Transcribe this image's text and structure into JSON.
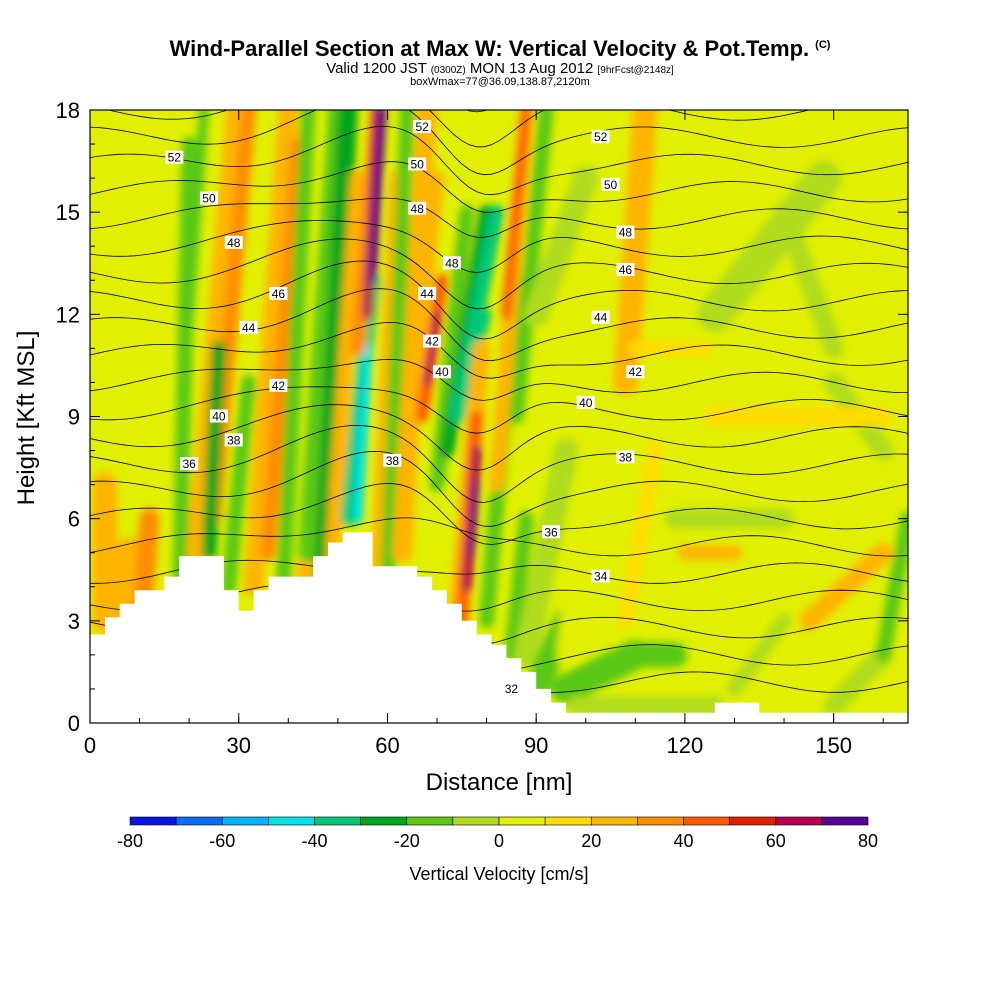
{
  "header": {
    "title": "Wind-Parallel Section at Max W: Vertical Velocity & Pot.Temp.",
    "title_unit": "(C)",
    "valid_prefix": "Valid 1200 JST",
    "valid_z": "(0300Z)",
    "valid_date": "MON 13 Aug 2012",
    "forecast": "[9hrFcst@2148z]",
    "boxwmax": "boxWmax=77@36.09,138.87,2120m"
  },
  "chart_data": {
    "type": "heatmap",
    "xlabel": "Distance [nm]",
    "ylabel": "Height [Kft MSL]",
    "xlim": [
      0,
      165
    ],
    "ylim": [
      0,
      18
    ],
    "xticks": [
      0,
      30,
      60,
      90,
      120,
      150
    ],
    "yticks": [
      0,
      3,
      6,
      9,
      12,
      15,
      18
    ],
    "colorbar": {
      "label": "Vertical Velocity [cm/s]",
      "ticks": [
        -80,
        -60,
        -40,
        -20,
        0,
        20,
        40,
        60,
        80
      ],
      "levels": [
        -80,
        -70,
        -60,
        -50,
        -40,
        -30,
        -20,
        -10,
        0,
        10,
        20,
        30,
        40,
        50,
        60,
        70,
        80
      ],
      "colors": [
        "#0a14e6",
        "#0a6ef5",
        "#00b4ff",
        "#00e1e6",
        "#00c878",
        "#00a51e",
        "#5ac814",
        "#afdc1e",
        "#e1f000",
        "#ffdc00",
        "#ffb400",
        "#ff8c00",
        "#ff5a00",
        "#e61e00",
        "#b40050",
        "#5a0096"
      ]
    },
    "terrain": [
      [
        0,
        2.6
      ],
      [
        3,
        2.6
      ],
      [
        3,
        3.1
      ],
      [
        6,
        3.1
      ],
      [
        6,
        3.5
      ],
      [
        9,
        3.5
      ],
      [
        9,
        3.9
      ],
      [
        15,
        3.9
      ],
      [
        15,
        4.3
      ],
      [
        18,
        4.3
      ],
      [
        18,
        4.9
      ],
      [
        27,
        4.9
      ],
      [
        27,
        3.9
      ],
      [
        30,
        3.9
      ],
      [
        30,
        3.3
      ],
      [
        33,
        3.3
      ],
      [
        33,
        3.9
      ],
      [
        36,
        3.9
      ],
      [
        36,
        4.3
      ],
      [
        45,
        4.3
      ],
      [
        45,
        4.9
      ],
      [
        48,
        4.9
      ],
      [
        48,
        5.3
      ],
      [
        51,
        5.3
      ],
      [
        51,
        5.6
      ],
      [
        57,
        5.6
      ],
      [
        57,
        4.6
      ],
      [
        66,
        4.6
      ],
      [
        66,
        4.3
      ],
      [
        69,
        4.3
      ],
      [
        69,
        3.9
      ],
      [
        72,
        3.9
      ],
      [
        72,
        3.5
      ],
      [
        75,
        3.5
      ],
      [
        75,
        3.0
      ],
      [
        78,
        3.0
      ],
      [
        78,
        2.6
      ],
      [
        81,
        2.6
      ],
      [
        81,
        2.3
      ],
      [
        84,
        2.3
      ],
      [
        84,
        1.9
      ],
      [
        87,
        1.9
      ],
      [
        87,
        1.5
      ],
      [
        90,
        1.5
      ],
      [
        90,
        1.0
      ],
      [
        93,
        1.0
      ],
      [
        93,
        0.6
      ],
      [
        96,
        0.6
      ],
      [
        96,
        0.3
      ],
      [
        126,
        0.3
      ],
      [
        126,
        0.6
      ],
      [
        135,
        0.6
      ],
      [
        135,
        0.3
      ],
      [
        165,
        0.3
      ]
    ],
    "contour_labels": [
      {
        "text": "52",
        "x": 17,
        "y": 16.6
      },
      {
        "text": "50",
        "x": 24,
        "y": 15.4
      },
      {
        "text": "48",
        "x": 29,
        "y": 14.1
      },
      {
        "text": "46",
        "x": 38,
        "y": 12.6
      },
      {
        "text": "44",
        "x": 32,
        "y": 11.6
      },
      {
        "text": "42",
        "x": 38,
        "y": 9.9
      },
      {
        "text": "40",
        "x": 26,
        "y": 9.0
      },
      {
        "text": "38",
        "x": 29,
        "y": 8.3
      },
      {
        "text": "36",
        "x": 20,
        "y": 7.6
      },
      {
        "text": "52",
        "x": 67,
        "y": 17.5
      },
      {
        "text": "50",
        "x": 66,
        "y": 16.4
      },
      {
        "text": "48",
        "x": 66,
        "y": 15.1
      },
      {
        "text": "48",
        "x": 73,
        "y": 13.5
      },
      {
        "text": "44",
        "x": 68,
        "y": 12.6
      },
      {
        "text": "42",
        "x": 69,
        "y": 11.2
      },
      {
        "text": "40",
        "x": 71,
        "y": 10.3
      },
      {
        "text": "38",
        "x": 61,
        "y": 7.7
      },
      {
        "text": "52",
        "x": 103,
        "y": 17.2
      },
      {
        "text": "50",
        "x": 105,
        "y": 15.8
      },
      {
        "text": "48",
        "x": 108,
        "y": 14.4
      },
      {
        "text": "46",
        "x": 108,
        "y": 13.3
      },
      {
        "text": "44",
        "x": 103,
        "y": 11.9
      },
      {
        "text": "42",
        "x": 110,
        "y": 10.3
      },
      {
        "text": "40",
        "x": 100,
        "y": 9.4
      },
      {
        "text": "38",
        "x": 108,
        "y": 7.8
      },
      {
        "text": "36",
        "x": 93,
        "y": 5.6
      },
      {
        "text": "34",
        "x": 103,
        "y": 4.3
      },
      {
        "text": "32",
        "x": 85,
        "y": 1.0
      }
    ]
  }
}
